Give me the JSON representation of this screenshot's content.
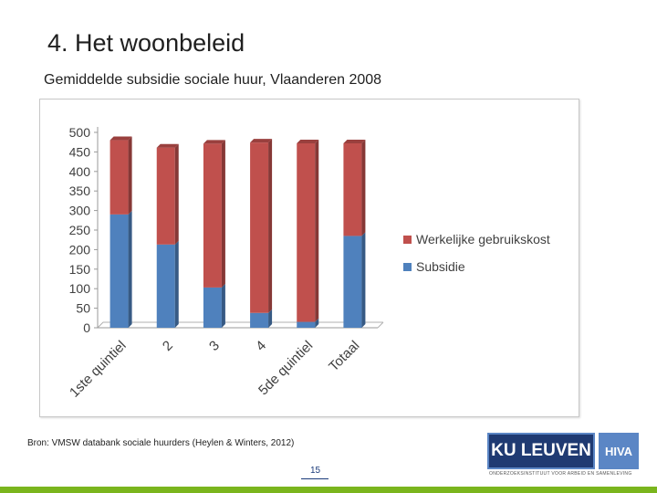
{
  "slide": {
    "title": "4. Het woonbeleid",
    "subtitle": "Gemiddelde subsidie sociale huur, Vlaanderen 2008",
    "source": "Bron: VMSW databank sociale huurders (Heylen & Winters, 2012)",
    "page_number": "15",
    "logo_kul_text": "KU LEUVEN",
    "logo_hiva_text": "HIVA",
    "logo_tagline": "ONDERZOEKSINSTITUUT VOOR ARBEID EN SAMENLEVING"
  },
  "colors": {
    "subsidie": "#4f81bd",
    "gebruikskost": "#c0504d",
    "accent_green": "#7ab51d",
    "kul_blue": "#1f3a72"
  },
  "chart_data": {
    "type": "bar",
    "stacked": true,
    "categories": [
      "1ste quintiel",
      "2",
      "3",
      "4",
      "5de quintiel",
      "Totaal"
    ],
    "series": [
      {
        "name": "Subsidie",
        "values": [
          290,
          213,
          103,
          38,
          15,
          235
        ],
        "color": "#4f81bd"
      },
      {
        "name": "Werkelijke gebruikskost",
        "values": [
          190,
          248,
          368,
          436,
          457,
          237
        ],
        "color": "#c0504d"
      }
    ],
    "y_ticks": [
      "0",
      "50",
      "100",
      "150",
      "200",
      "250",
      "300",
      "350",
      "400",
      "450",
      "500"
    ],
    "ylim": [
      0,
      500
    ],
    "legend_position": "right",
    "legend_order": [
      "Werkelijke gebruikskost",
      "Subsidie"
    ],
    "grid": false,
    "style": "3d"
  }
}
